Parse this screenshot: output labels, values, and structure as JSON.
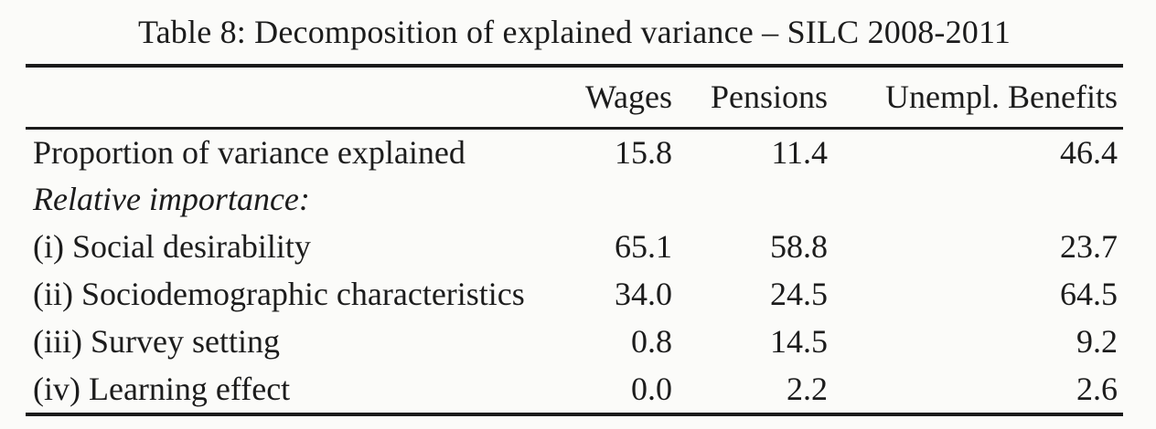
{
  "title": "Table 8: Decomposition of explained variance – SILC 2008-2011",
  "colors": {
    "background": "#fbfbf9",
    "text": "#1c1c1c",
    "rules": "#1b1b1b"
  },
  "table": {
    "columns": [
      "Wages",
      "Pensions",
      "Unempl. Benefits"
    ],
    "rows": [
      {
        "label": "Proportion of variance explained",
        "style": "normal",
        "values": [
          "15.8",
          "11.4",
          "46.4"
        ]
      },
      {
        "label": "Relative importance:",
        "style": "italic",
        "values": [
          "",
          "",
          ""
        ]
      },
      {
        "label": "(i) Social desirability",
        "style": "normal",
        "values": [
          "65.1",
          "58.8",
          "23.7"
        ]
      },
      {
        "label": "(ii) Sociodemographic characteristics",
        "style": "normal",
        "values": [
          "34.0",
          "24.5",
          "64.5"
        ]
      },
      {
        "label": "(iii) Survey setting",
        "style": "normal",
        "values": [
          "0.8",
          "14.5",
          "9.2"
        ]
      },
      {
        "label": "(iv) Learning effect",
        "style": "normal",
        "values": [
          "0.0",
          "2.2",
          "2.6"
        ]
      }
    ]
  }
}
